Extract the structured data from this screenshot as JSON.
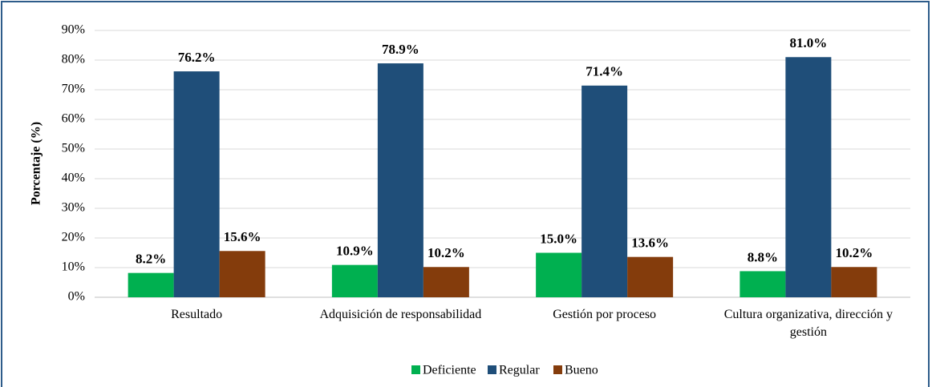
{
  "chart_data": {
    "type": "bar",
    "y_label": "Porcentaje (%)",
    "categories": [
      "Resultado",
      "Adquisición de responsabilidad",
      "Gestión por proceso",
      "Cultura organizativa, dirección y gestión"
    ],
    "series": [
      {
        "name": "Deficiente",
        "color": "#00b050",
        "values": [
          8.2,
          10.9,
          15.0,
          8.8
        ],
        "value_labels": [
          "8.2%",
          "10.9%",
          "15.0%",
          "8.8%"
        ]
      },
      {
        "name": "Regular",
        "color": "#1f4e79",
        "values": [
          76.2,
          78.9,
          71.4,
          81.0
        ],
        "value_labels": [
          "76.2%",
          "78.9%",
          "71.4%",
          "81.0%"
        ]
      },
      {
        "name": "Bueno",
        "color": "#843c0c",
        "values": [
          15.6,
          10.2,
          13.6,
          10.2
        ],
        "value_labels": [
          "15.6%",
          "10.2%",
          "13.6%",
          "10.2%"
        ]
      }
    ],
    "ylim": [
      0,
      90
    ],
    "yticks": [
      {
        "value": 0,
        "label": "0%"
      },
      {
        "value": 10,
        "label": "10%"
      },
      {
        "value": 20,
        "label": "20%"
      },
      {
        "value": 30,
        "label": "30%"
      },
      {
        "value": 40,
        "label": "40%"
      },
      {
        "value": 50,
        "label": "50%"
      },
      {
        "value": 60,
        "label": "60%"
      },
      {
        "value": 70,
        "label": "70%"
      },
      {
        "value": 80,
        "label": "80%"
      },
      {
        "value": 90,
        "label": "90%"
      }
    ],
    "grid": true,
    "legend": "bottom"
  }
}
